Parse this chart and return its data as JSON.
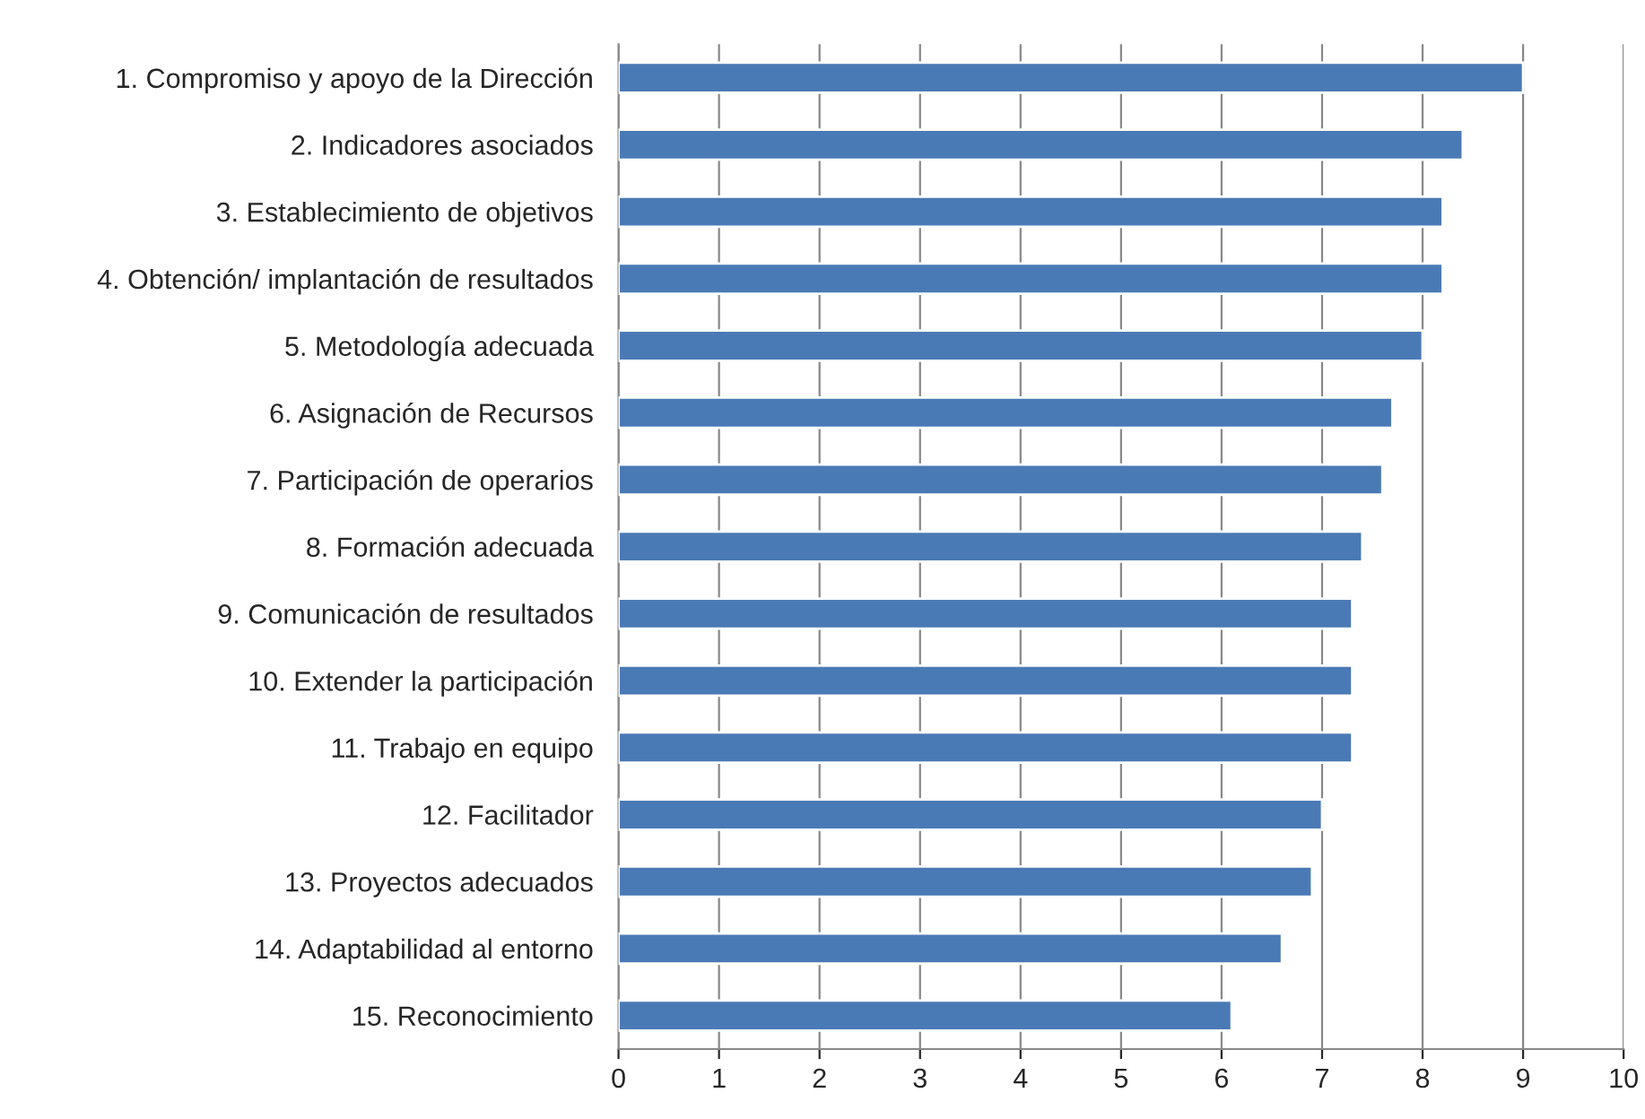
{
  "chart_data": {
    "type": "bar",
    "orientation": "horizontal",
    "categories": [
      "1. Compromiso y apoyo de la Dirección",
      "2. Indicadores asociados",
      "3. Establecimiento de objetivos",
      "4. Obtención/ implantación de resultados",
      "5. Metodología adecuada",
      "6. Asignación de Recursos",
      "7. Participación de operarios",
      "8. Formación adecuada",
      "9. Comunicación de resultados",
      "10. Extender la participación",
      "11. Trabajo en equipo",
      "12. Facilitador",
      "13. Proyectos adecuados",
      "14. Adaptabilidad al entorno",
      "15. Reconocimiento"
    ],
    "values": [
      9.0,
      8.4,
      8.2,
      8.2,
      8.0,
      7.7,
      7.6,
      7.4,
      7.3,
      7.3,
      7.3,
      7.0,
      6.9,
      6.6,
      6.1
    ],
    "color": "#4a7ab5",
    "xlim": [
      0,
      10
    ],
    "xticks": [
      0,
      1,
      2,
      3,
      4,
      5,
      6,
      7,
      8,
      9,
      10
    ],
    "grid": "x",
    "legend": false
  }
}
